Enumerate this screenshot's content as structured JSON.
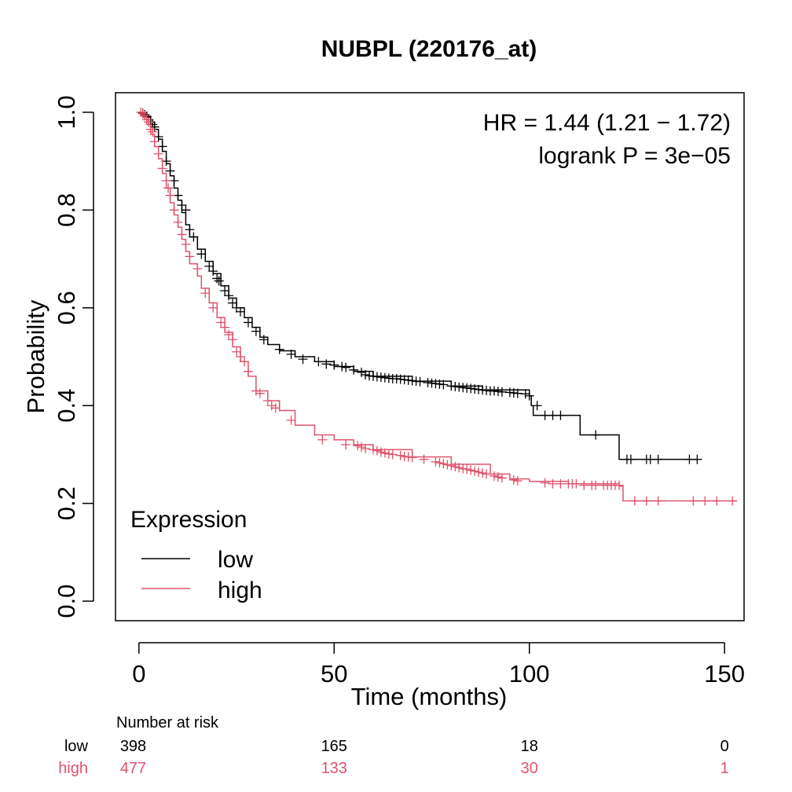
{
  "chart_data": {
    "type": "line",
    "title": "NUBPL (220176_at)",
    "xlabel": "Time (months)",
    "ylabel": "Probability",
    "xlim": [
      -6,
      155
    ],
    "ylim": [
      -0.04,
      1.04
    ],
    "x_ticks": [
      0,
      50,
      100,
      150
    ],
    "y_ticks": [
      0.0,
      0.2,
      0.4,
      0.6,
      0.8,
      1.0
    ],
    "x_tick_labels": [
      "0",
      "50",
      "100",
      "150"
    ],
    "y_tick_labels": [
      "0.0",
      "0.2",
      "0.4",
      "0.6",
      "0.8",
      "1.0"
    ],
    "grid": false,
    "annotations": {
      "hr": "HR = 1.44 (1.21 − 1.72)",
      "logrank": "logrank P = 3e−05"
    },
    "legend": {
      "title": "Expression",
      "placement": "bottom-left",
      "entries": [
        "low",
        "high"
      ]
    },
    "series": [
      {
        "name": "low",
        "color": "#000000",
        "steps": [
          [
            0,
            1.0
          ],
          [
            1,
            0.995
          ],
          [
            2,
            0.99
          ],
          [
            3,
            0.98
          ],
          [
            4,
            0.965
          ],
          [
            5,
            0.945
          ],
          [
            6,
            0.92
          ],
          [
            7,
            0.895
          ],
          [
            8,
            0.87
          ],
          [
            9,
            0.845
          ],
          [
            10,
            0.82
          ],
          [
            11,
            0.795
          ],
          [
            12,
            0.77
          ],
          [
            13,
            0.745
          ],
          [
            15,
            0.72
          ],
          [
            17,
            0.695
          ],
          [
            19,
            0.67
          ],
          [
            21,
            0.645
          ],
          [
            23,
            0.62
          ],
          [
            25,
            0.6
          ],
          [
            27,
            0.58
          ],
          [
            29,
            0.56
          ],
          [
            31,
            0.54
          ],
          [
            33,
            0.525
          ],
          [
            36,
            0.512
          ],
          [
            40,
            0.5
          ],
          [
            45,
            0.49
          ],
          [
            50,
            0.48
          ],
          [
            55,
            0.47
          ],
          [
            60,
            0.46
          ],
          [
            70,
            0.45
          ],
          [
            80,
            0.44
          ],
          [
            88,
            0.432
          ],
          [
            100,
            0.42
          ],
          [
            100.5,
            0.4
          ],
          [
            101,
            0.38
          ],
          [
            113,
            0.34
          ],
          [
            123,
            0.29
          ],
          [
            143,
            0.29
          ]
        ],
        "censors": [
          [
            1,
            0.998
          ],
          [
            1.5,
            0.995
          ],
          [
            2,
            0.992
          ],
          [
            2.5,
            0.985
          ],
          [
            3,
            0.98
          ],
          [
            3.5,
            0.975
          ],
          [
            4,
            0.97
          ],
          [
            5,
            0.95
          ],
          [
            6,
            0.93
          ],
          [
            7,
            0.9
          ],
          [
            8,
            0.88
          ],
          [
            9,
            0.86
          ],
          [
            10,
            0.83
          ],
          [
            11,
            0.81
          ],
          [
            12,
            0.8
          ],
          [
            13,
            0.76
          ],
          [
            14,
            0.745
          ],
          [
            16,
            0.71
          ],
          [
            18,
            0.685
          ],
          [
            19,
            0.675
          ],
          [
            20,
            0.66
          ],
          [
            20.5,
            0.655
          ],
          [
            22,
            0.635
          ],
          [
            23,
            0.625
          ],
          [
            24,
            0.61
          ],
          [
            25,
            0.6
          ],
          [
            26,
            0.592
          ],
          [
            28,
            0.57
          ],
          [
            30,
            0.552
          ],
          [
            32,
            0.535
          ],
          [
            36,
            0.515
          ],
          [
            39,
            0.505
          ],
          [
            42,
            0.495
          ],
          [
            46,
            0.49
          ],
          [
            48,
            0.485
          ],
          [
            50,
            0.483
          ],
          [
            52,
            0.48
          ],
          [
            53,
            0.478
          ],
          [
            55,
            0.473
          ],
          [
            57,
            0.468
          ],
          [
            58,
            0.463
          ],
          [
            59,
            0.461
          ],
          [
            60,
            0.46
          ],
          [
            61,
            0.459
          ],
          [
            62,
            0.458
          ],
          [
            63,
            0.457
          ],
          [
            64,
            0.456
          ],
          [
            65,
            0.455
          ],
          [
            66,
            0.455
          ],
          [
            67,
            0.454
          ],
          [
            68,
            0.453
          ],
          [
            69,
            0.452
          ],
          [
            70,
            0.451
          ],
          [
            71,
            0.45
          ],
          [
            72,
            0.449
          ],
          [
            74,
            0.447
          ],
          [
            75,
            0.446
          ],
          [
            76,
            0.445
          ],
          [
            77,
            0.444
          ],
          [
            78,
            0.443
          ],
          [
            80,
            0.44
          ],
          [
            81,
            0.439
          ],
          [
            82,
            0.438
          ],
          [
            83,
            0.437
          ],
          [
            84,
            0.436
          ],
          [
            85,
            0.435
          ],
          [
            86,
            0.434
          ],
          [
            87,
            0.433
          ],
          [
            88,
            0.432
          ],
          [
            89,
            0.431
          ],
          [
            90,
            0.43
          ],
          [
            91,
            0.43
          ],
          [
            92,
            0.429
          ],
          [
            93,
            0.428
          ],
          [
            95,
            0.427
          ],
          [
            96,
            0.426
          ],
          [
            97,
            0.425
          ],
          [
            99,
            0.424
          ],
          [
            100,
            0.42
          ],
          [
            102,
            0.4
          ],
          [
            104,
            0.38
          ],
          [
            106,
            0.38
          ],
          [
            108,
            0.38
          ],
          [
            117,
            0.34
          ],
          [
            125,
            0.29
          ],
          [
            126,
            0.29
          ],
          [
            130,
            0.29
          ],
          [
            131,
            0.29
          ],
          [
            133,
            0.29
          ],
          [
            141,
            0.29
          ],
          [
            143,
            0.29
          ]
        ]
      },
      {
        "name": "high",
        "color": "#DF536B",
        "steps": [
          [
            0,
            1.0
          ],
          [
            1,
            0.99
          ],
          [
            2,
            0.975
          ],
          [
            3,
            0.955
          ],
          [
            4,
            0.93
          ],
          [
            5,
            0.905
          ],
          [
            6,
            0.875
          ],
          [
            7,
            0.845
          ],
          [
            8,
            0.815
          ],
          [
            9,
            0.79
          ],
          [
            10,
            0.765
          ],
          [
            11,
            0.74
          ],
          [
            12,
            0.715
          ],
          [
            13,
            0.69
          ],
          [
            15,
            0.665
          ],
          [
            16,
            0.64
          ],
          [
            18,
            0.61
          ],
          [
            20,
            0.58
          ],
          [
            22,
            0.55
          ],
          [
            24,
            0.52
          ],
          [
            26,
            0.49
          ],
          [
            28,
            0.46
          ],
          [
            30,
            0.43
          ],
          [
            33,
            0.41
          ],
          [
            36,
            0.39
          ],
          [
            40,
            0.36
          ],
          [
            45,
            0.34
          ],
          [
            50,
            0.33
          ],
          [
            55,
            0.32
          ],
          [
            60,
            0.31
          ],
          [
            70,
            0.295
          ],
          [
            80,
            0.28
          ],
          [
            90,
            0.26
          ],
          [
            95,
            0.25
          ],
          [
            100,
            0.245
          ],
          [
            110,
            0.24
          ],
          [
            123,
            0.235
          ],
          [
            124,
            0.205
          ],
          [
            153,
            0.205
          ]
        ],
        "censors": [
          [
            0.5,
            1.0
          ],
          [
            1,
            0.997
          ],
          [
            1.5,
            0.993
          ],
          [
            2,
            0.985
          ],
          [
            2.5,
            0.98
          ],
          [
            3,
            0.965
          ],
          [
            3.5,
            0.96
          ],
          [
            4,
            0.94
          ],
          [
            5,
            0.915
          ],
          [
            6,
            0.885
          ],
          [
            7,
            0.86
          ],
          [
            7.5,
            0.845
          ],
          [
            8,
            0.83
          ],
          [
            9,
            0.8
          ],
          [
            10,
            0.775
          ],
          [
            11,
            0.75
          ],
          [
            12,
            0.73
          ],
          [
            13,
            0.705
          ],
          [
            15,
            0.68
          ],
          [
            17,
            0.63
          ],
          [
            19,
            0.6
          ],
          [
            21,
            0.57
          ],
          [
            22,
            0.56
          ],
          [
            23,
            0.545
          ],
          [
            24,
            0.535
          ],
          [
            25,
            0.51
          ],
          [
            26,
            0.5
          ],
          [
            27,
            0.49
          ],
          [
            28,
            0.47
          ],
          [
            30,
            0.43
          ],
          [
            31,
            0.425
          ],
          [
            33,
            0.41
          ],
          [
            34,
            0.4
          ],
          [
            35,
            0.395
          ],
          [
            39,
            0.37
          ],
          [
            47,
            0.33
          ],
          [
            53,
            0.32
          ],
          [
            56,
            0.318
          ],
          [
            57,
            0.315
          ],
          [
            58,
            0.312
          ],
          [
            60,
            0.31
          ],
          [
            61,
            0.308
          ],
          [
            62,
            0.305
          ],
          [
            63,
            0.303
          ],
          [
            64,
            0.301
          ],
          [
            65,
            0.3
          ],
          [
            67,
            0.298
          ],
          [
            68,
            0.296
          ],
          [
            69,
            0.295
          ],
          [
            70,
            0.294
          ],
          [
            73,
            0.29
          ],
          [
            76,
            0.285
          ],
          [
            77,
            0.283
          ],
          [
            78,
            0.281
          ],
          [
            79,
            0.279
          ],
          [
            80,
            0.277
          ],
          [
            81,
            0.275
          ],
          [
            82,
            0.273
          ],
          [
            83,
            0.271
          ],
          [
            84,
            0.27
          ],
          [
            85,
            0.268
          ],
          [
            86,
            0.266
          ],
          [
            87,
            0.264
          ],
          [
            88,
            0.262
          ],
          [
            89,
            0.26
          ],
          [
            91,
            0.256
          ],
          [
            92,
            0.254
          ],
          [
            93,
            0.252
          ],
          [
            96,
            0.248
          ],
          [
            97,
            0.246
          ],
          [
            104,
            0.242
          ],
          [
            106,
            0.24
          ],
          [
            108,
            0.24
          ],
          [
            110,
            0.24
          ],
          [
            111,
            0.24
          ],
          [
            112,
            0.24
          ],
          [
            114,
            0.237
          ],
          [
            116,
            0.237
          ],
          [
            117,
            0.237
          ],
          [
            119,
            0.237
          ],
          [
            120,
            0.237
          ],
          [
            121,
            0.237
          ],
          [
            122,
            0.237
          ],
          [
            123,
            0.237
          ],
          [
            127,
            0.205
          ],
          [
            130,
            0.205
          ],
          [
            133,
            0.205
          ],
          [
            142,
            0.205
          ],
          [
            145,
            0.205
          ],
          [
            148,
            0.205
          ],
          [
            152,
            0.205
          ]
        ]
      }
    ],
    "risk_table": {
      "header": "Number at risk",
      "times": [
        0,
        50,
        100,
        150
      ],
      "rows": [
        {
          "label": "low",
          "color": "#000000",
          "counts": [
            "398",
            "165",
            "18",
            "0"
          ]
        },
        {
          "label": "high",
          "color": "#DF536B",
          "counts": [
            "477",
            "133",
            "30",
            "1"
          ]
        }
      ]
    }
  }
}
